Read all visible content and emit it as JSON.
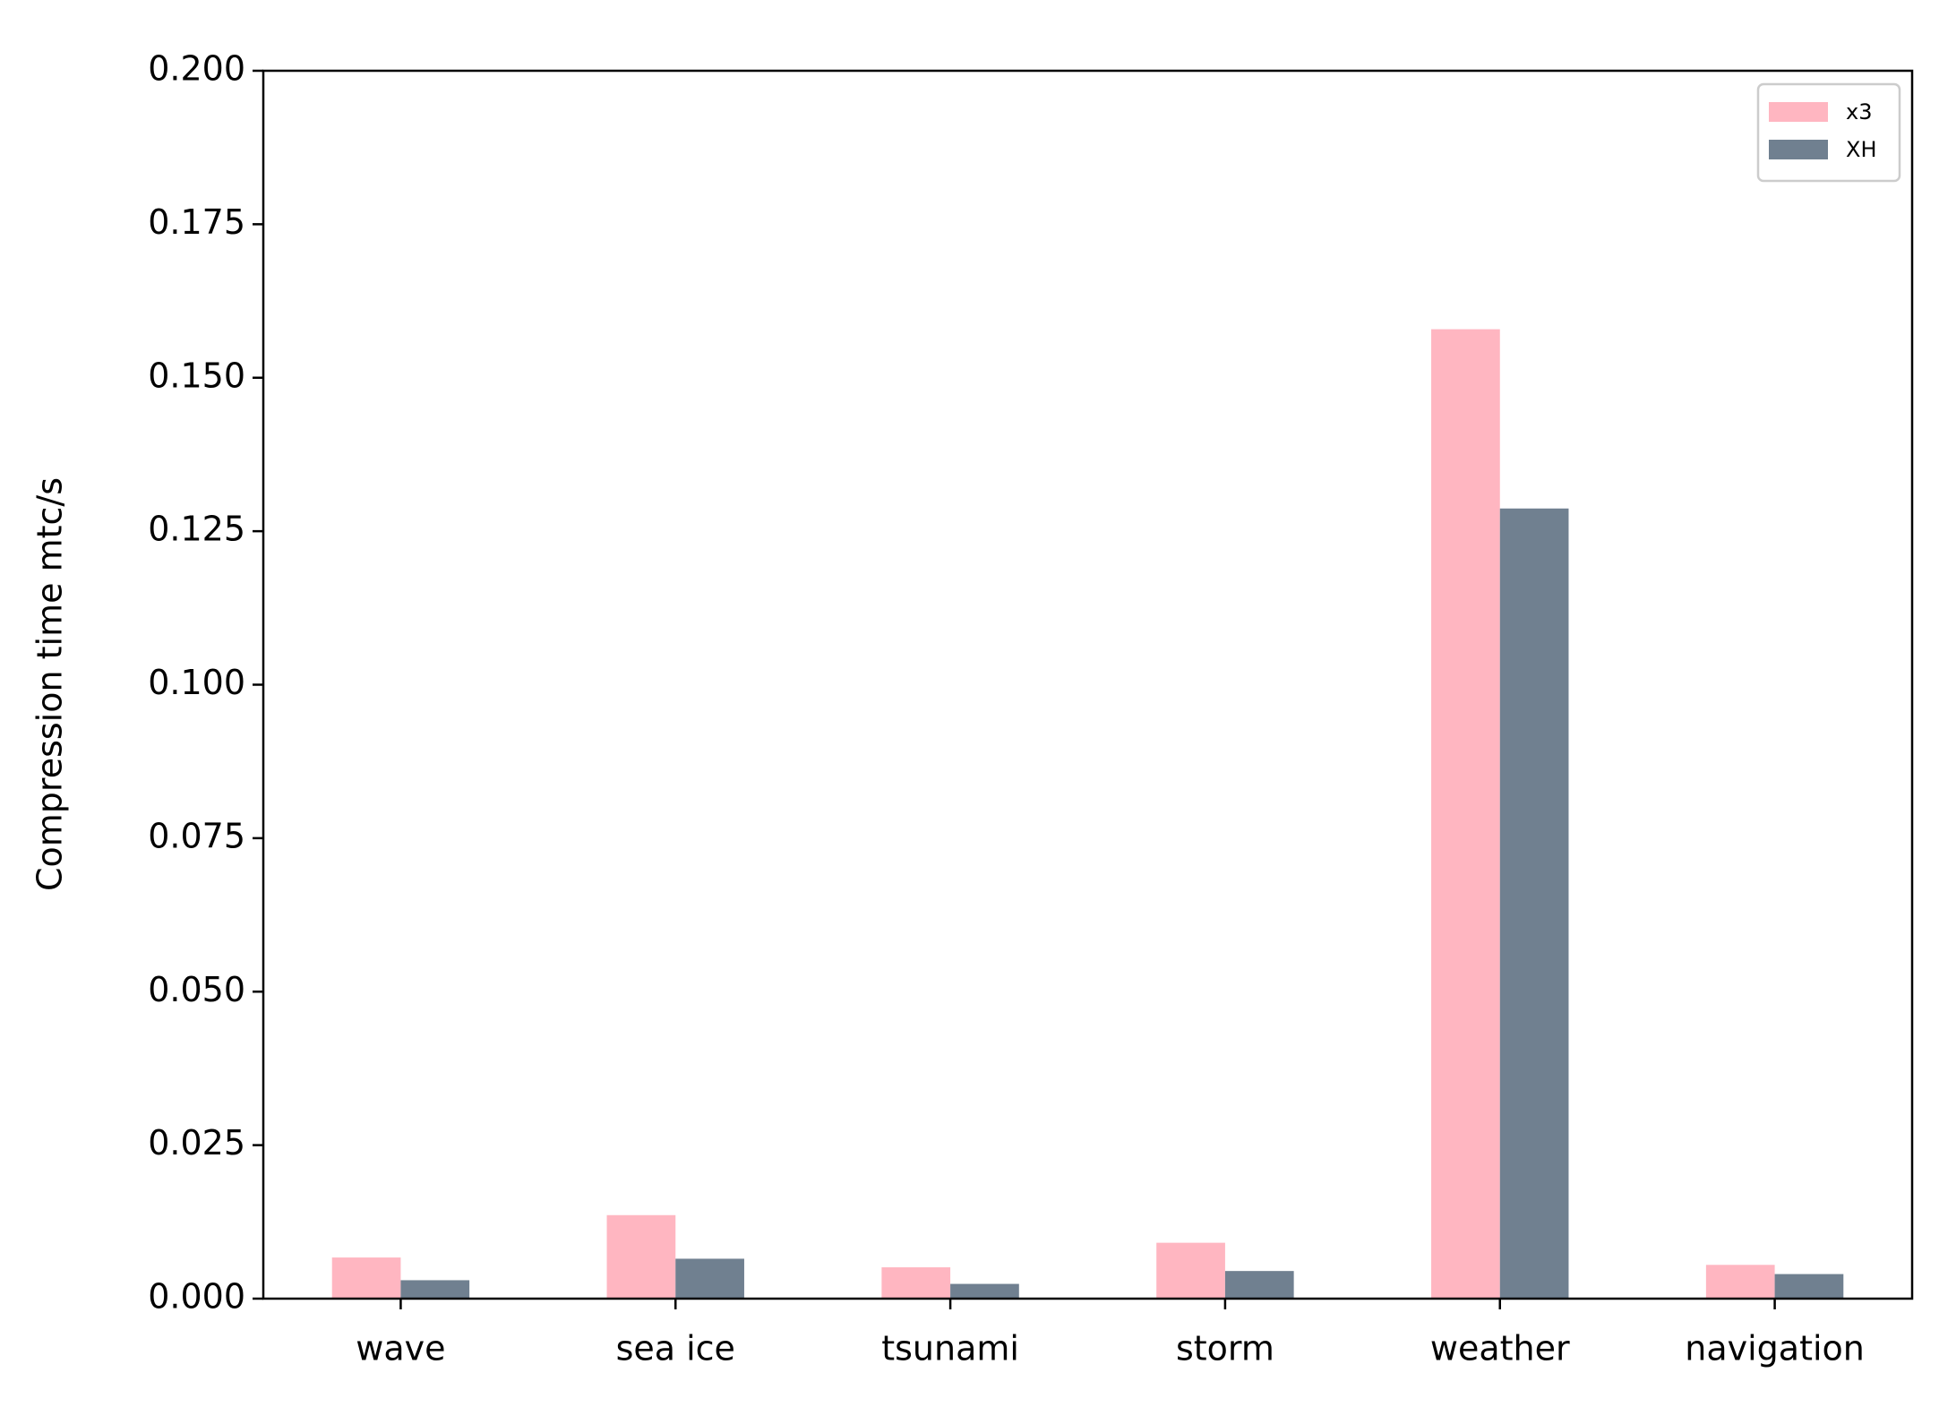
{
  "chart_data": {
    "type": "bar",
    "y_label": "Compression time mtc/s",
    "categories": [
      "wave",
      "sea ice",
      "tsunami",
      "storm",
      "weather",
      "navigation"
    ],
    "series": [
      {
        "name": "x3",
        "color": "#ffb6c1",
        "values": [
          0.0067,
          0.0136,
          0.0051,
          0.0091,
          0.1579,
          0.0055
        ]
      },
      {
        "name": "XH",
        "color": "#708090",
        "values": [
          0.003,
          0.0065,
          0.0024,
          0.0045,
          0.1287,
          0.004
        ]
      }
    ],
    "ylim": [
      0,
      0.2
    ],
    "yticks": [
      {
        "value": 0,
        "label": "0.000"
      },
      {
        "value": 0.025,
        "label": "0.025"
      },
      {
        "value": 0.05,
        "label": "0.050"
      },
      {
        "value": 0.075,
        "label": "0.075"
      },
      {
        "value": 0.1,
        "label": "0.100"
      },
      {
        "value": 0.125,
        "label": "0.125"
      },
      {
        "value": 0.15,
        "label": "0.150"
      },
      {
        "value": 0.175,
        "label": "0.175"
      },
      {
        "value": 0.2,
        "label": "0.200"
      }
    ],
    "grid": false,
    "legend": "upper right"
  }
}
